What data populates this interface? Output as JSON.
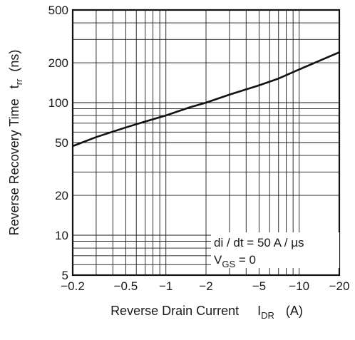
{
  "chart_data": {
    "type": "line",
    "title": "",
    "xscale": "log",
    "yscale": "log",
    "xlim": [
      -0.2,
      -20
    ],
    "ylim": [
      5,
      500
    ],
    "xlabel": "Reverse Drain Current",
    "xlabel_symbol": "I",
    "xlabel_sub": "DR",
    "xlabel_unit": "(A)",
    "ylabel": "Reverse Recovery Time",
    "ylabel_symbol": "t",
    "ylabel_sub": "rr",
    "ylabel_unit": "(ns)",
    "x_ticks": [
      -0.2,
      -0.5,
      -1,
      -2,
      -5,
      -10,
      -20
    ],
    "x_tick_labels": [
      "−0.2",
      "−0.5",
      "−1",
      "−2",
      "−5",
      "−10",
      "−20"
    ],
    "y_ticks": [
      5,
      10,
      20,
      50,
      100,
      200,
      500
    ],
    "y_tick_labels": [
      "5",
      "10",
      "20",
      "50",
      "100",
      "200",
      "500"
    ],
    "grid": true,
    "annotations": {
      "line1": "di / dt = 50 A / µs",
      "line2_symbol": "V",
      "line2_sub": "GS",
      "line2_rest": " = 0"
    },
    "series": [
      {
        "x": [
          -0.2,
          -0.3,
          -0.5,
          -0.7,
          -1,
          -1.5,
          -2,
          -3,
          -5,
          -7,
          -10,
          -15,
          -20
        ],
        "y": [
          47,
          55,
          65,
          72,
          80,
          92,
          100,
          115,
          135,
          152,
          178,
          212,
          240
        ]
      }
    ]
  }
}
